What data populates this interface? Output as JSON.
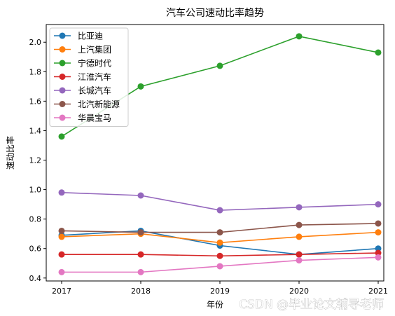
{
  "chart_data": {
    "type": "line",
    "title": "汽车公司速动比率趋势",
    "xlabel": "年份",
    "ylabel": "速动比率",
    "categories": [
      "2017",
      "2018",
      "2019",
      "2020",
      "2021"
    ],
    "ylim": [
      0.38,
      2.12
    ],
    "yticks": [
      "0.4",
      "0.6",
      "0.8",
      "1.0",
      "1.2",
      "1.4",
      "1.6",
      "1.8",
      "2.0"
    ],
    "grid": false,
    "legend_position": "top-left",
    "series": [
      {
        "name": "比亚迪",
        "color": "#1f77b4",
        "values": [
          0.69,
          0.72,
          0.62,
          0.56,
          0.6
        ]
      },
      {
        "name": "上汽集团",
        "color": "#ff7f0e",
        "values": [
          0.68,
          0.7,
          0.64,
          0.68,
          0.71
        ]
      },
      {
        "name": "宁德时代",
        "color": "#2ca02c",
        "values": [
          1.36,
          1.7,
          1.84,
          2.04,
          1.93
        ]
      },
      {
        "name": "江淮汽车",
        "color": "#d62728",
        "values": [
          0.56,
          0.56,
          0.55,
          0.56,
          0.57
        ]
      },
      {
        "name": "长城汽车",
        "color": "#9467bd",
        "values": [
          0.98,
          0.96,
          0.86,
          0.88,
          0.9
        ]
      },
      {
        "name": "北汽新能源",
        "color": "#8c564b",
        "values": [
          0.72,
          0.71,
          0.71,
          0.76,
          0.77
        ]
      },
      {
        "name": "华晨宝马",
        "color": "#e377c2",
        "values": [
          0.44,
          0.44,
          0.48,
          0.52,
          0.54
        ]
      }
    ]
  },
  "watermark": "CSDN @毕业论文辅导老师"
}
